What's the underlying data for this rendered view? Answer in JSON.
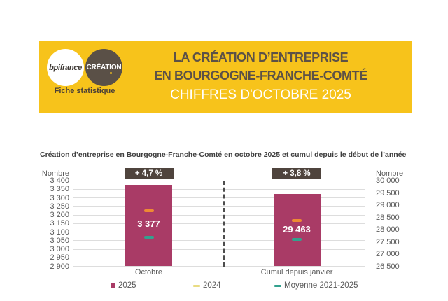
{
  "header": {
    "bpifrance_label": "bpifrance",
    "creation_label": "CRÉATION",
    "tagline": "Fiche statistique",
    "title_line1": "LA CRÉATION D’ENTREPRISE",
    "title_line2": "EN BOURGOGNE-FRANCHE-COMTÉ",
    "subtitle": "CHIFFRES D'OCTOBRE 2025",
    "colors": {
      "banner": "#F7C31B",
      "dark_circle": "#5A5047"
    }
  },
  "chart_data": {
    "type": "bar",
    "title": "Création d’entreprise en Bourgogne-Franche-Comté en octobre 2025 et cumul depuis le début de l’année",
    "grid": true,
    "left_axis": {
      "label": "Nombre",
      "min": 2900,
      "max": 3400,
      "step": 50,
      "ticks": [
        "3 400",
        "3 350",
        "3 300",
        "3 250",
        "3 200",
        "3 150",
        "3 100",
        "3 050",
        "3 000",
        "2 950",
        "2 900"
      ]
    },
    "right_axis": {
      "label": "Nombre",
      "min": 26500,
      "max": 30000,
      "step": 500,
      "ticks": [
        "30 000",
        "29 500",
        "29 000",
        "28 500",
        "28 000",
        "27 500",
        "27 000",
        "26 500"
      ]
    },
    "groups": [
      {
        "category": "Octobre",
        "axis": "left",
        "badge": "+ 4,7 %",
        "value_2025": 3377,
        "value_label": "3 377",
        "value_2024_est": 3225,
        "moyenne_2021_2025_est": 3068
      },
      {
        "category": "Cumul depuis janvier",
        "axis": "right",
        "badge": "+ 3,8 %",
        "value_2025": 29463,
        "value_label": "29 463",
        "value_2024_est": 28380,
        "moyenne_2021_2025_est": 27605
      }
    ],
    "legend": [
      {
        "label": "2025",
        "marker": "square",
        "color": "#A93B66"
      },
      {
        "label": "2024",
        "marker": "dash",
        "color": "#E9DC83"
      },
      {
        "label": "Moyenne 2021-2025",
        "marker": "dash",
        "color": "#33A18E"
      }
    ],
    "colors": {
      "bar_2025": "#A93B66",
      "marker_2024": "#EE8A33",
      "marker_moyenne": "#33A18E",
      "badge_bg": "#4F443D",
      "grid": "#DDDDDD"
    }
  }
}
